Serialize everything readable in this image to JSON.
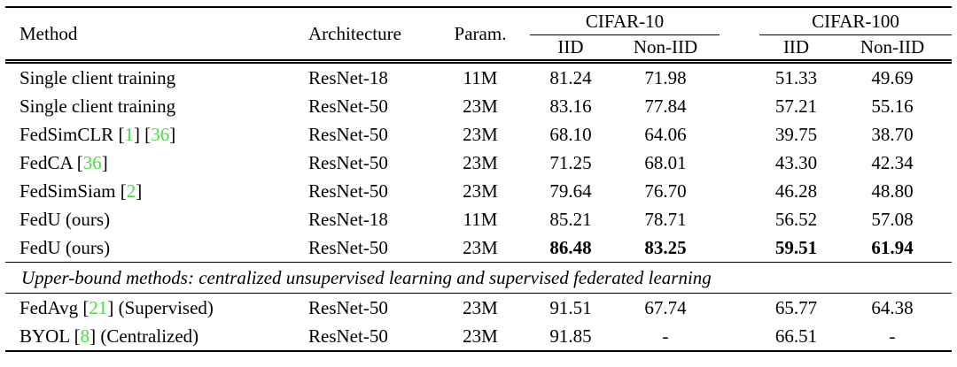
{
  "styles": {
    "citation_green": "#42dd42",
    "text_color": "#000000",
    "rule_color": "#000000",
    "background": "#ffffff"
  },
  "header": {
    "method": "Method",
    "architecture": "Architecture",
    "param": "Param.",
    "cifar10": "CIFAR-10",
    "cifar100": "CIFAR-100",
    "iid": "IID",
    "non_iid": "Non-IID"
  },
  "rows": [
    {
      "type": "data",
      "method": [
        {
          "t": "Single client training"
        }
      ],
      "arch": "ResNet-18",
      "param": "11M",
      "values": [
        "81.24",
        "71.98",
        "51.33",
        "49.69"
      ],
      "bold_values": false
    },
    {
      "type": "data",
      "method": [
        {
          "t": "Single client training"
        }
      ],
      "arch": "ResNet-50",
      "param": "23M",
      "values": [
        "83.16",
        "77.84",
        "57.21",
        "55.16"
      ],
      "bold_values": false
    },
    {
      "type": "data",
      "method": [
        {
          "t": "FedSimCLR ["
        },
        {
          "t": "1",
          "cite": true
        },
        {
          "t": "] ["
        },
        {
          "t": "36",
          "cite": true
        },
        {
          "t": "]"
        }
      ],
      "arch": "ResNet-50",
      "param": "23M",
      "values": [
        "68.10",
        "64.06",
        "39.75",
        "38.70"
      ],
      "bold_values": false
    },
    {
      "type": "data",
      "method": [
        {
          "t": "FedCA ["
        },
        {
          "t": "36",
          "cite": true
        },
        {
          "t": "]"
        }
      ],
      "arch": "ResNet-50",
      "param": "23M",
      "values": [
        "71.25",
        "68.01",
        "43.30",
        "42.34"
      ],
      "bold_values": false
    },
    {
      "type": "data",
      "method": [
        {
          "t": "FedSimSiam ["
        },
        {
          "t": "2",
          "cite": true
        },
        {
          "t": "]"
        }
      ],
      "arch": "ResNet-50",
      "param": "23M",
      "values": [
        "79.64",
        "76.70",
        "46.28",
        "48.80"
      ],
      "bold_values": false
    },
    {
      "type": "data",
      "method": [
        {
          "t": "FedU (ours)"
        }
      ],
      "arch": "ResNet-18",
      "param": "11M",
      "values": [
        "85.21",
        "78.71",
        "56.52",
        "57.08"
      ],
      "bold_values": false
    },
    {
      "type": "data",
      "method": [
        {
          "t": "FedU (ours)"
        }
      ],
      "arch": "ResNet-50",
      "param": "23M",
      "values": [
        "86.48",
        "83.25",
        "59.51",
        "61.94"
      ],
      "bold_values": true
    },
    {
      "type": "section",
      "text": "Upper-bound methods: centralized unsupervised learning and supervised federated learning"
    },
    {
      "type": "data",
      "method": [
        {
          "t": "FedAvg ["
        },
        {
          "t": "21",
          "cite": true
        },
        {
          "t": "] (Supervised)"
        }
      ],
      "arch": "ResNet-50",
      "param": "23M",
      "values": [
        "91.51",
        "67.74",
        "65.77",
        "64.38"
      ],
      "bold_values": false
    },
    {
      "type": "data",
      "method": [
        {
          "t": "BYOL ["
        },
        {
          "t": "8",
          "cite": true
        },
        {
          "t": "] (Centralized)"
        }
      ],
      "arch": "ResNet-50",
      "param": "23M",
      "values": [
        "91.85",
        "-",
        "66.51",
        "-"
      ],
      "bold_values": false
    }
  ]
}
